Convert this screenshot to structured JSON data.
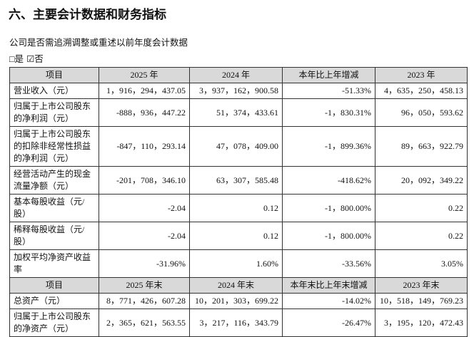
{
  "header": {
    "title": "六、主要会计数据和财务指标"
  },
  "question": "公司是否需追溯调整或重述以前年度会计数据",
  "options": [
    "□是",
    "☑否"
  ],
  "table": {
    "sections": [
      {
        "header": [
          "项目",
          "2025 年",
          "2024 年",
          "本年比上年增减",
          "2023 年"
        ],
        "rows": [
          [
            "营业收入（元）",
            "1，916，294，437.05",
            "3，937，162，900.58",
            "-51.33%",
            "4，635，250，458.13"
          ],
          [
            "归属于上市公司股东的净利润（元）",
            "-888，936，447.22",
            "51，374，433.61",
            "-1，830.31%",
            "96，050，593.62"
          ],
          [
            "归属于上市公司股东的扣除非经常性损益的净利润（元）",
            "-847，110，293.14",
            "47，078，409.00",
            "-1，899.36%",
            "89，663，922.79"
          ],
          [
            "经营活动产生的现金流量净额（元）",
            "-201，708，346.10",
            "63，307，585.48",
            "-418.62%",
            "20，092，349.22"
          ],
          [
            "基本每股收益（元/股）",
            "-2.04",
            "0.12",
            "-1，800.00%",
            "0.22"
          ],
          [
            "稀释每股收益（元/股）",
            "-2.04",
            "0.12",
            "-1，800.00%",
            "0.22"
          ],
          [
            "加权平均净资产收益率",
            "-31.96%",
            "1.60%",
            "-33.56%",
            "3.05%"
          ]
        ]
      },
      {
        "header": [
          "项目",
          "2025 年末",
          "2024 年末",
          "本年末比上年末增减",
          "2023 年末"
        ],
        "rows": [
          [
            "总资产（元）",
            "8，771，426，607.28",
            "10，201，303，699.22",
            "-14.02%",
            "10，518，149，769.23"
          ],
          [
            "归属于上市公司股东的净资产（元）",
            "2，365，621，563.55",
            "3，217，116，343.79",
            "-26.47%",
            "3，195，120，472.43"
          ]
        ]
      }
    ]
  }
}
